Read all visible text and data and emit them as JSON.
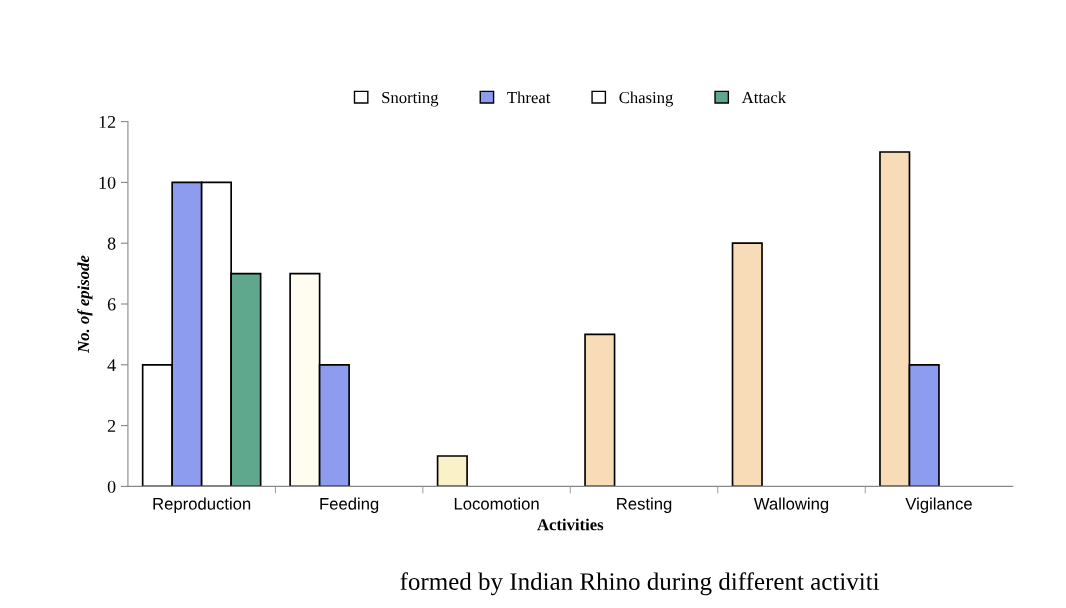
{
  "chart_data": {
    "type": "bar",
    "xlabel": "Activities",
    "ylabel": "No. of episode",
    "categories": [
      "Reproduction",
      "Feeding",
      "Locomotion",
      "Resting",
      "Wallowing",
      "Vigilance"
    ],
    "series": [
      {
        "name": "Snorting",
        "color": "#ffffff",
        "colors": [
          "#ffffff",
          "#fffdf0",
          "#fbf1c8",
          "#f8dcb8",
          "#f8dcb8",
          "#f8dcb8"
        ],
        "values": [
          4,
          7,
          1,
          5,
          8,
          11
        ]
      },
      {
        "name": "Threat",
        "color": "#8e9cef",
        "values": [
          10,
          4,
          null,
          null,
          null,
          4
        ]
      },
      {
        "name": "Chasing",
        "color": "#ffffff",
        "values": [
          10,
          null,
          null,
          null,
          null,
          null
        ]
      },
      {
        "name": "Attack",
        "color": "#5fa88e",
        "values": [
          7,
          null,
          null,
          null,
          null,
          null
        ]
      }
    ],
    "ylim": [
      0,
      12
    ],
    "yticks": [
      0,
      2,
      4,
      6,
      8,
      10,
      12
    ],
    "grid": false,
    "legend": "top",
    "annotations": [
      "formed by Indian Rhino during different activiti"
    ]
  }
}
